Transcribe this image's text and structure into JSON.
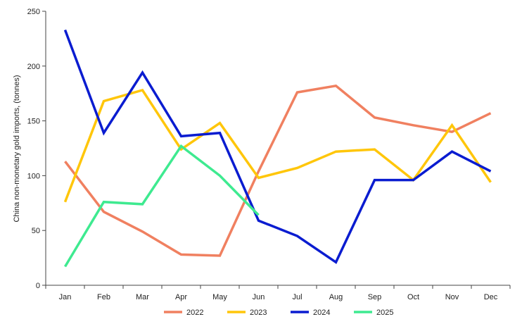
{
  "chart_data": {
    "type": "line",
    "title": "",
    "xlabel": "",
    "ylabel": "China non-monetary gold imports, (tonnes)",
    "ylim": [
      0,
      250
    ],
    "yticks": [
      0,
      50,
      100,
      150,
      200,
      250
    ],
    "grid": false,
    "legend_position": "bottom",
    "categories": [
      "Jan",
      "Feb",
      "Mar",
      "Apr",
      "May",
      "Jun",
      "Jul",
      "Aug",
      "Sep",
      "Oct",
      "Nov",
      "Dec"
    ],
    "series": [
      {
        "name": "2022",
        "color": "#F08060",
        "values": [
          113,
          67,
          49,
          28,
          27,
          104,
          176,
          182,
          153,
          146,
          140,
          157
        ]
      },
      {
        "name": "2023",
        "color": "#FFC60A",
        "values": [
          76,
          168,
          178,
          124,
          148,
          98,
          107,
          122,
          124,
          96,
          146,
          94
        ]
      },
      {
        "name": "2024",
        "color": "#0A1CD0",
        "values": [
          233,
          139,
          194,
          136,
          139,
          59,
          45,
          21,
          96,
          96,
          122,
          104
        ]
      },
      {
        "name": "2025",
        "color": "#3EEA90",
        "values": [
          17,
          76,
          74,
          127,
          100,
          64,
          null,
          null,
          null,
          null,
          null,
          null
        ]
      }
    ]
  }
}
